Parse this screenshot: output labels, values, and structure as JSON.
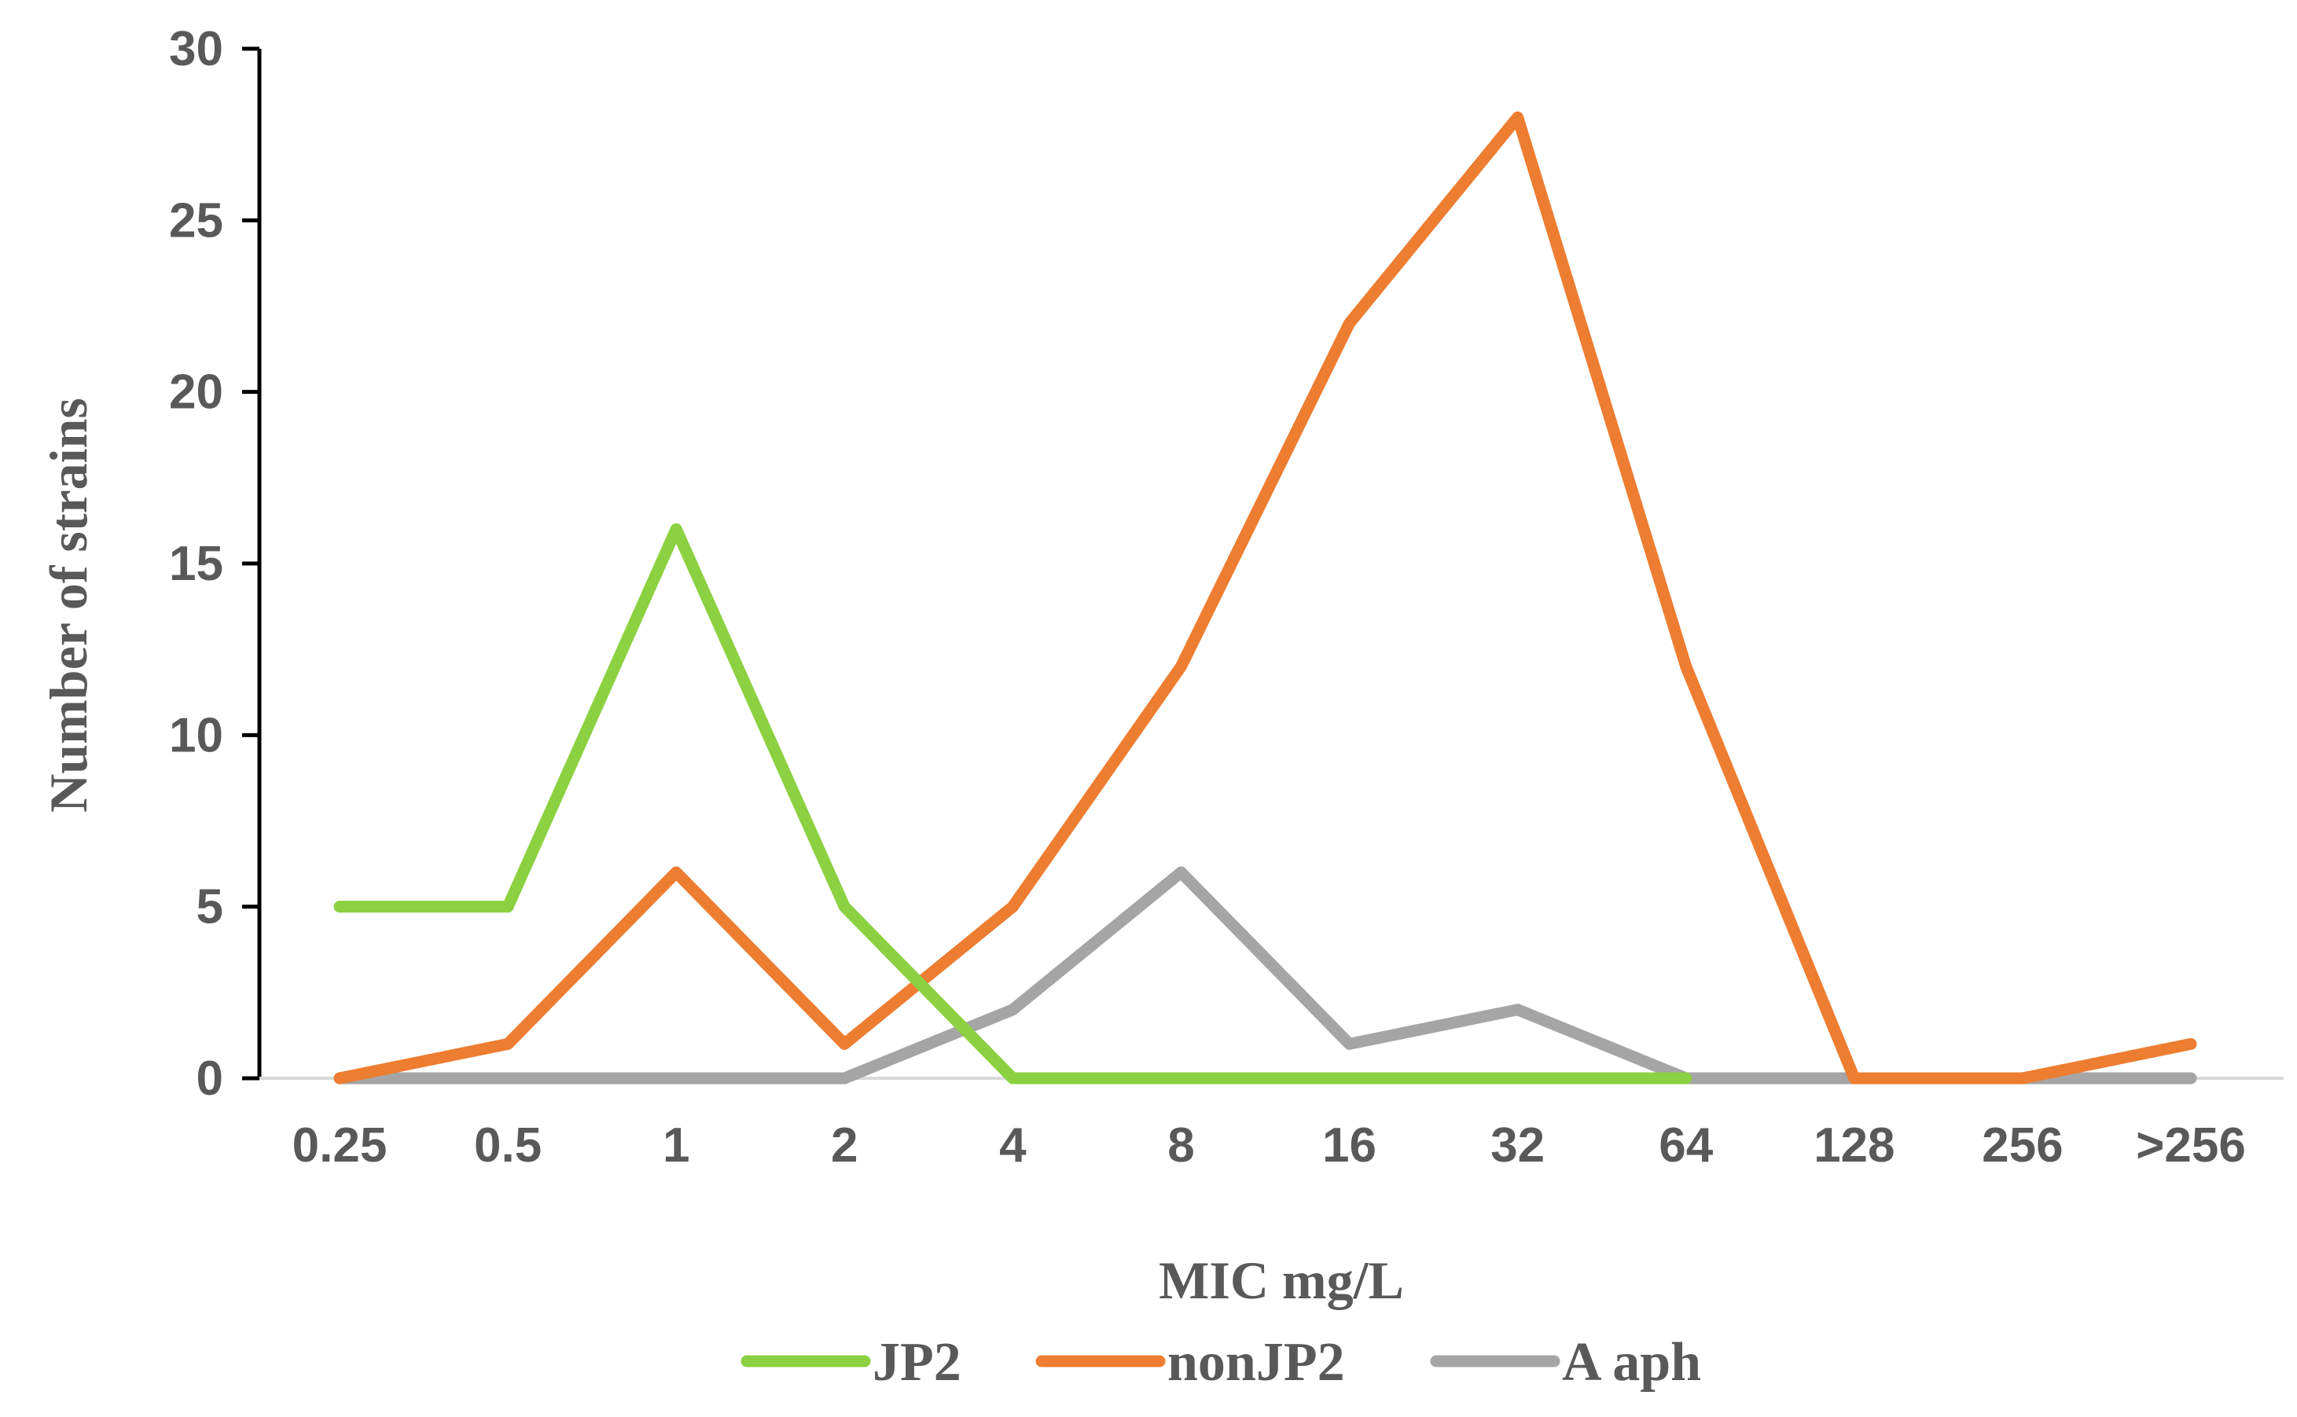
{
  "chart_data": {
    "type": "line",
    "title": "",
    "xlabel": "MIC mg/L",
    "ylabel": "Number of strains",
    "categories": [
      "0.25",
      "0.5",
      "1",
      "2",
      "4",
      "8",
      "16",
      "32",
      "64",
      "128",
      "256",
      ">256"
    ],
    "y_ticks": [
      "0",
      "5",
      "10",
      "15",
      "20",
      "25",
      "30"
    ],
    "ylim": [
      0,
      30
    ],
    "grid": false,
    "legend_position": "bottom",
    "series": [
      {
        "name": "JP2",
        "color": "#8BD141",
        "values": [
          5,
          5,
          16,
          5,
          0,
          0,
          0,
          0,
          0,
          null,
          null,
          null
        ]
      },
      {
        "name": "nonJP2",
        "color": "#ED7D31",
        "values": [
          0,
          1,
          6,
          1,
          5,
          12,
          22,
          28,
          12,
          0,
          0,
          1
        ]
      },
      {
        "name": "A aph",
        "color": "#A5A5A5",
        "values": [
          0,
          0,
          0,
          0,
          2,
          6,
          1,
          2,
          0,
          0,
          0,
          0
        ]
      }
    ],
    "series_order_drawn": [
      "A aph",
      "nonJP2",
      "JP2"
    ]
  }
}
